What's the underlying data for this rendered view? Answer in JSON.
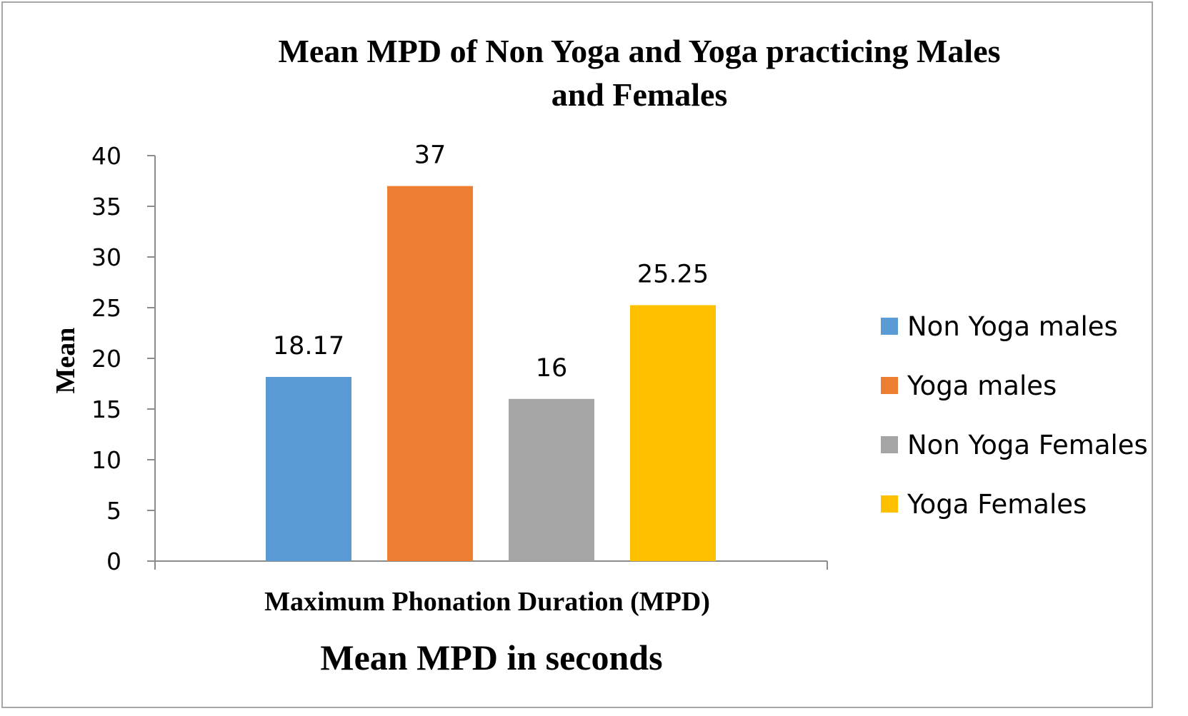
{
  "chart_data": {
    "type": "bar",
    "title": "Mean MPD of Non Yoga and Yoga practicing Males and Females",
    "title_lines": [
      "Mean MPD of Non Yoga and Yoga practicing Males",
      "and Females"
    ],
    "xlabel": "Maximum Phonation Duration (MPD)",
    "subtitle_bottom": "Mean MPD in seconds",
    "ylabel": "Mean",
    "ylim": [
      0,
      40
    ],
    "yticks": [
      0,
      5,
      10,
      15,
      20,
      25,
      30,
      35,
      40
    ],
    "grid": false,
    "legend_position": "right",
    "categories": [
      "Maximum Phonation Duration (MPD)"
    ],
    "series": [
      {
        "name": "Non Yoga males",
        "values": [
          18.17
        ],
        "label": "18.17",
        "color": "#5b9bd5"
      },
      {
        "name": "Yoga males",
        "values": [
          37
        ],
        "label": "37",
        "color": "#ed7d31"
      },
      {
        "name": "Non Yoga Females",
        "values": [
          16
        ],
        "label": "16",
        "color": "#a5a5a5"
      },
      {
        "name": "Yoga Females",
        "values": [
          25.25
        ],
        "label": "25.25",
        "color": "#ffc000"
      }
    ]
  }
}
